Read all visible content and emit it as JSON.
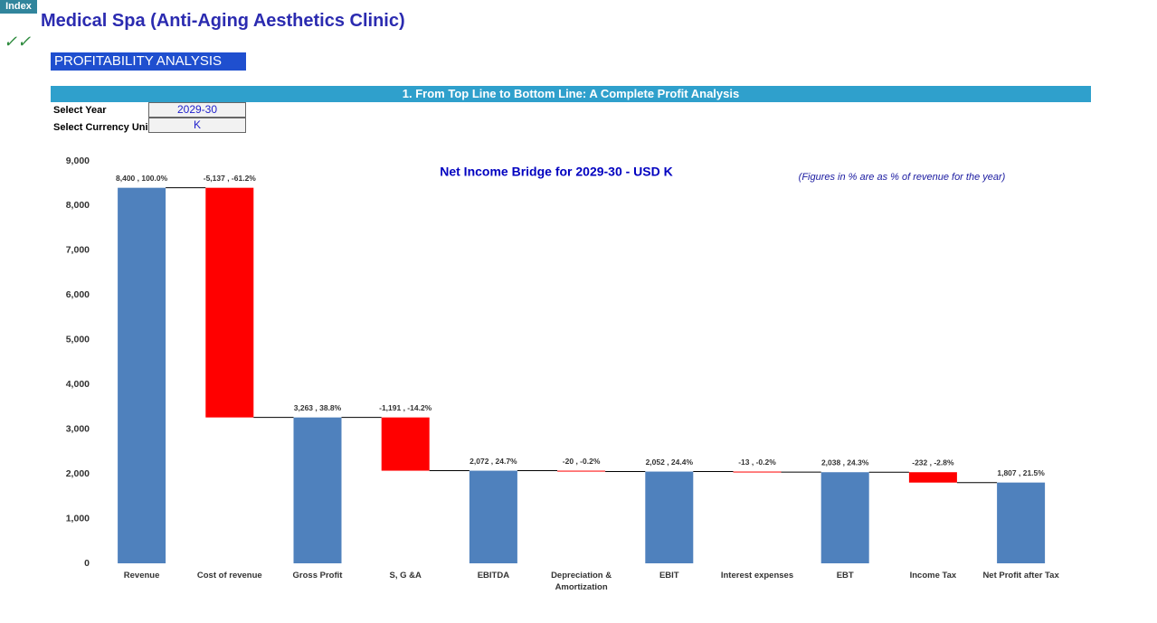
{
  "index_tab": "Index",
  "checkmark": "✓✓",
  "title": "Medical Spa (Anti-Aging Aesthetics Clinic)",
  "section": "PROFITABILITY ANALYSIS",
  "banner": "1. From Top Line to Bottom Line: A Complete Profit Analysis",
  "inputs": [
    {
      "label": "Select Year",
      "value": "2029-30"
    },
    {
      "label": "Select Currency Uni",
      "value": "K"
    }
  ],
  "chart_data": {
    "type": "waterfall",
    "title": "Net Income Bridge for 2029-30 - USD K",
    "note": "(Figures in % are as % of revenue for the year)",
    "categories": [
      "Revenue",
      "Cost of revenue",
      "Gross Profit",
      "S, G &A",
      "EBITDA",
      "Depreciation & Amortization",
      "EBIT",
      "Interest expenses",
      "EBT",
      "Income Tax",
      "Net Profit after Tax"
    ],
    "kinds": [
      "total",
      "change",
      "total",
      "change",
      "total",
      "change",
      "total",
      "change",
      "total",
      "change",
      "total"
    ],
    "values": [
      8400,
      -5137,
      3263,
      -1191,
      2072,
      -20,
      2052,
      -13,
      2038,
      -232,
      1807
    ],
    "value_labels": [
      "8,400 , 100.0%",
      "-5,137 , -61.2%",
      "3,263 , 38.8%",
      "-1,191 , -14.2%",
      "2,072 , 24.7%",
      "-20 , -0.2%",
      "2,052 , 24.4%",
      "-13 , -0.2%",
      "2,038 , 24.3%",
      "-232 , -2.8%",
      "1,807 , 21.5%"
    ],
    "total_color": "#4f81bd",
    "negative_color": "#ff0000",
    "ylim": [
      0,
      9000
    ],
    "yticks": [
      0,
      {
        "value": 1000,
        "label": "1,000"
      },
      {
        "value": 2000,
        "label": "2,000"
      },
      {
        "value": 3000,
        "label": "3,000"
      },
      {
        "value": 4000,
        "label": "4,000"
      },
      {
        "value": 5000,
        "label": "5,000"
      },
      {
        "value": 6000,
        "label": "6,000"
      },
      {
        "value": 7000,
        "label": "7,000"
      },
      {
        "value": 8000,
        "label": "8,000"
      },
      {
        "value": 9000,
        "label": "9,000"
      }
    ]
  }
}
